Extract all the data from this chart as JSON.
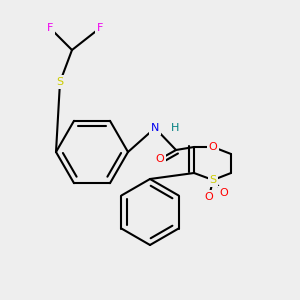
{
  "background_color": "#eeeeee",
  "atom_colors": {
    "F": "#ee00ee",
    "S": "#cccc00",
    "N": "#0000ee",
    "O": "#ff0000",
    "C": "#000000",
    "H": "#008080"
  },
  "bond_lw": 1.5,
  "font_size": 8.0
}
